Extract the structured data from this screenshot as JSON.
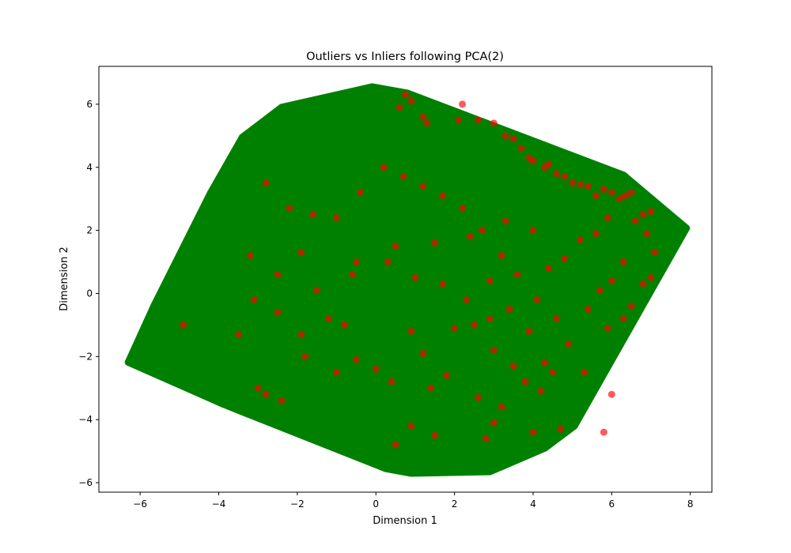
{
  "chart_data": {
    "type": "scatter",
    "title": "Outliers vs Inliers following PCA(2)",
    "xlabel": "Dimension 1",
    "ylabel": "Dimension 2",
    "xlim": [
      -7.05,
      8.55
    ],
    "ylim": [
      -6.3,
      7.2
    ],
    "xticks": [
      -6,
      -4,
      -2,
      0,
      2,
      4,
      6,
      8
    ],
    "yticks": [
      -6,
      -4,
      -2,
      0,
      2,
      4,
      6
    ],
    "grid": false,
    "legend": "none",
    "colors": {
      "inlier": "#008000",
      "outlier": "#ff0000"
    },
    "series": [
      {
        "role": "inlier",
        "color": "#008000",
        "points": [
          [
            -6.3,
            -2.18
          ],
          [
            -6.18,
            -2.2
          ],
          [
            -5.95,
            -1.82
          ],
          [
            -5.8,
            -1.8
          ],
          [
            -5.65,
            -0.4
          ],
          [
            -5.6,
            -1.1
          ],
          [
            -5.45,
            -0.8
          ],
          [
            -5.3,
            -0.2
          ],
          [
            -5.15,
            0.55
          ],
          [
            -5.0,
            0.85
          ],
          [
            -4.9,
            1.35
          ],
          [
            -4.7,
            1.45
          ],
          [
            -4.55,
            1.6
          ],
          [
            -4.4,
            2.1
          ],
          [
            -4.3,
            2.6
          ],
          [
            -4.2,
            3.2
          ],
          [
            -4.0,
            2.55
          ],
          [
            -3.9,
            2.9
          ],
          [
            -3.7,
            4.0
          ],
          [
            -3.6,
            3.5
          ],
          [
            -3.4,
            4.95
          ],
          [
            -3.2,
            5.05
          ],
          [
            -3.0,
            4.9
          ],
          [
            -2.8,
            5.3
          ],
          [
            -2.6,
            5.0
          ],
          [
            -2.4,
            5.9
          ],
          [
            -2.2,
            5.65
          ],
          [
            -2.0,
            5.4
          ],
          [
            -1.8,
            5.85
          ],
          [
            -1.5,
            5.9
          ],
          [
            -1.2,
            5.7
          ],
          [
            -0.9,
            5.5
          ],
          [
            -0.6,
            5.9
          ],
          [
            -0.3,
            6.3
          ],
          [
            -0.1,
            6.55
          ],
          [
            0.2,
            5.9
          ],
          [
            0.35,
            6.45
          ],
          [
            0.55,
            6.0
          ],
          [
            0.8,
            6.35
          ],
          [
            1.0,
            5.5
          ],
          [
            1.3,
            5.2
          ],
          [
            1.55,
            5.75
          ],
          [
            1.8,
            5.1
          ],
          [
            2.1,
            5.3
          ],
          [
            2.4,
            5.0
          ],
          [
            2.6,
            4.8
          ],
          [
            2.9,
            4.6
          ],
          [
            3.2,
            4.7
          ],
          [
            3.5,
            4.4
          ],
          [
            3.8,
            4.5
          ],
          [
            4.1,
            4.1
          ],
          [
            4.4,
            4.2
          ],
          [
            4.7,
            3.5
          ],
          [
            5.0,
            3.6
          ],
          [
            5.3,
            3.2
          ],
          [
            5.55,
            3.3
          ],
          [
            5.85,
            2.9
          ],
          [
            6.1,
            3.4
          ],
          [
            6.3,
            3.75
          ],
          [
            6.5,
            2.5
          ],
          [
            6.7,
            1.8
          ],
          [
            6.95,
            1.65
          ],
          [
            7.15,
            1.5
          ],
          [
            7.3,
            1.3
          ],
          [
            7.45,
            1.15
          ],
          [
            7.9,
            2.07
          ],
          [
            7.2,
            0.85
          ],
          [
            7.05,
            0.55
          ],
          [
            6.8,
            0.1
          ],
          [
            6.6,
            -0.3
          ],
          [
            6.5,
            -0.8
          ],
          [
            6.2,
            -1.4
          ],
          [
            6.0,
            -1.9
          ],
          [
            5.8,
            -2.3
          ],
          [
            5.5,
            -3.1
          ],
          [
            5.3,
            -3.6
          ],
          [
            5.05,
            -4.2
          ],
          [
            4.9,
            -4.3
          ],
          [
            4.6,
            -4.4
          ],
          [
            4.3,
            -4.9
          ],
          [
            4.0,
            -5.0
          ],
          [
            3.6,
            -4.8
          ],
          [
            3.3,
            -5.2
          ],
          [
            3.0,
            -5.4
          ],
          [
            2.9,
            -5.65
          ],
          [
            2.6,
            -5.2
          ],
          [
            2.3,
            -4.95
          ],
          [
            1.9,
            -5.2
          ],
          [
            1.6,
            -5.3
          ],
          [
            1.3,
            -5.5
          ],
          [
            1.15,
            -5.05
          ],
          [
            0.9,
            -5.7
          ],
          [
            0.75,
            -5.65
          ],
          [
            0.5,
            -5.3
          ],
          [
            0.25,
            -5.55
          ],
          [
            -0.1,
            -5.2
          ],
          [
            -0.4,
            -4.9
          ],
          [
            -0.7,
            -4.9
          ],
          [
            -1.0,
            -4.7
          ],
          [
            -1.3,
            -4.5
          ],
          [
            -1.6,
            -4.3
          ],
          [
            -2.0,
            -4.4
          ],
          [
            -2.3,
            -4.2
          ],
          [
            -2.6,
            -4.0
          ],
          [
            -3.0,
            -3.9
          ],
          [
            -3.3,
            -3.8
          ],
          [
            -3.6,
            -3.6
          ],
          [
            -3.9,
            -3.5
          ],
          [
            -4.2,
            -3.3
          ],
          [
            -4.5,
            -3.1
          ],
          [
            -4.8,
            -2.95
          ],
          [
            -5.1,
            -2.8
          ],
          [
            -5.4,
            -2.6
          ],
          [
            -5.7,
            -2.4
          ],
          [
            -6.0,
            -2.3
          ],
          [
            -3.0,
            -1.0
          ],
          [
            -2.0,
            -0.5
          ],
          [
            -1.0,
            0.0
          ],
          [
            0.0,
            0.5
          ],
          [
            1.0,
            1.0
          ],
          [
            2.0,
            1.5
          ],
          [
            3.0,
            2.0
          ],
          [
            4.0,
            1.0
          ],
          [
            5.0,
            0.5
          ],
          [
            -2.5,
            1.5
          ],
          [
            -1.5,
            2.5
          ],
          [
            -0.5,
            3.5
          ],
          [
            0.5,
            4.0
          ],
          [
            1.5,
            3.0
          ],
          [
            2.5,
            2.5
          ],
          [
            3.5,
            0.0
          ],
          [
            4.5,
            -1.0
          ],
          [
            3.0,
            -2.5
          ],
          [
            2.0,
            -3.5
          ],
          [
            1.0,
            -4.0
          ],
          [
            0.0,
            -3.5
          ],
          [
            -1.0,
            -3.0
          ],
          [
            -2.0,
            -2.5
          ],
          [
            -3.0,
            -2.0
          ],
          [
            -4.0,
            -1.0
          ],
          [
            -4.5,
            0.5
          ],
          [
            -3.5,
            1.0
          ],
          [
            -2.5,
            3.0
          ],
          [
            -1.5,
            4.5
          ],
          [
            0.5,
            2.0
          ],
          [
            1.5,
            -1.0
          ],
          [
            2.5,
            -1.5
          ],
          [
            4.2,
            2.8
          ],
          [
            5.2,
            2.1
          ],
          [
            5.9,
            0.9
          ],
          [
            3.8,
            -3.0
          ],
          [
            5.6,
            -1.2
          ],
          [
            6.6,
            0.7
          ],
          [
            -0.8,
            -4.5
          ],
          [
            -2.2,
            -3.8
          ],
          [
            -4.8,
            -0.5
          ],
          [
            -5.2,
            0.2
          ],
          [
            -3.8,
            2.4
          ],
          [
            -1.0,
            5.0
          ],
          [
            0.8,
            5.2
          ],
          [
            2.8,
            4.2
          ],
          [
            4.6,
            3.0
          ],
          [
            6.2,
            1.4
          ]
        ]
      },
      {
        "role": "outlier",
        "color": "#ff0000",
        "points": [
          [
            0.6,
            5.9
          ],
          [
            0.75,
            6.3
          ],
          [
            0.9,
            6.1
          ],
          [
            1.2,
            5.6
          ],
          [
            1.3,
            5.4
          ],
          [
            2.1,
            5.5
          ],
          [
            2.2,
            6.0
          ],
          [
            2.6,
            5.5
          ],
          [
            3.0,
            5.4
          ],
          [
            3.3,
            5.0
          ],
          [
            3.5,
            4.9
          ],
          [
            3.7,
            4.6
          ],
          [
            3.9,
            4.3
          ],
          [
            4.0,
            4.2
          ],
          [
            4.3,
            4.0
          ],
          [
            4.4,
            4.1
          ],
          [
            4.6,
            3.8
          ],
          [
            4.8,
            3.7
          ],
          [
            5.0,
            3.5
          ],
          [
            5.2,
            3.45
          ],
          [
            5.4,
            3.4
          ],
          [
            5.6,
            3.1
          ],
          [
            5.8,
            3.3
          ],
          [
            6.0,
            3.2
          ],
          [
            6.2,
            3.0
          ],
          [
            6.35,
            3.1
          ],
          [
            6.5,
            3.2
          ],
          [
            6.6,
            2.3
          ],
          [
            6.8,
            2.5
          ],
          [
            7.0,
            2.6
          ],
          [
            6.9,
            1.9
          ],
          [
            7.1,
            1.3
          ],
          [
            6.3,
            1.0
          ],
          [
            6.0,
            0.4
          ],
          [
            5.7,
            0.1
          ],
          [
            5.4,
            -0.5
          ],
          [
            5.9,
            -1.1
          ],
          [
            6.3,
            -0.8
          ],
          [
            6.5,
            -0.4
          ],
          [
            6.8,
            0.3
          ],
          [
            7.0,
            0.5
          ],
          [
            5.3,
            -2.5
          ],
          [
            6.0,
            -3.2
          ],
          [
            5.8,
            -4.4
          ],
          [
            4.7,
            -4.3
          ],
          [
            4.0,
            -4.4
          ],
          [
            3.0,
            -4.1
          ],
          [
            2.8,
            -4.6
          ],
          [
            1.5,
            -4.5
          ],
          [
            0.9,
            -4.2
          ],
          [
            0.5,
            -4.8
          ],
          [
            -3.0,
            -3.0
          ],
          [
            -2.8,
            -3.2
          ],
          [
            -2.4,
            -3.4
          ],
          [
            -1.8,
            -2.0
          ],
          [
            -1.0,
            -2.5
          ],
          [
            -0.5,
            -2.1
          ],
          [
            0.0,
            -2.4
          ],
          [
            0.4,
            -2.8
          ],
          [
            1.2,
            -1.9
          ],
          [
            2.0,
            -1.1
          ],
          [
            2.5,
            -1.0
          ],
          [
            3.0,
            -1.8
          ],
          [
            3.5,
            -2.3
          ],
          [
            3.8,
            -2.8
          ],
          [
            4.2,
            -3.1
          ],
          [
            4.5,
            -2.5
          ],
          [
            4.9,
            -1.6
          ],
          [
            4.6,
            -0.8
          ],
          [
            4.1,
            -0.2
          ],
          [
            3.6,
            0.6
          ],
          [
            3.2,
            1.2
          ],
          [
            2.7,
            2.0
          ],
          [
            2.2,
            2.7
          ],
          [
            1.7,
            3.1
          ],
          [
            1.2,
            3.4
          ],
          [
            0.7,
            3.7
          ],
          [
            0.2,
            4.0
          ],
          [
            -0.4,
            3.2
          ],
          [
            -1.0,
            2.4
          ],
          [
            -1.6,
            2.5
          ],
          [
            -2.2,
            2.7
          ],
          [
            -2.8,
            3.5
          ],
          [
            -3.2,
            1.2
          ],
          [
            -2.5,
            0.6
          ],
          [
            -1.9,
            1.3
          ],
          [
            -1.2,
            -0.8
          ],
          [
            -0.6,
            0.6
          ],
          [
            0.3,
            1.0
          ],
          [
            1.0,
            0.5
          ],
          [
            1.7,
            0.3
          ],
          [
            2.3,
            -0.2
          ],
          [
            2.9,
            0.4
          ],
          [
            3.4,
            -0.5
          ],
          [
            4.4,
            0.8
          ],
          [
            4.8,
            1.1
          ],
          [
            5.2,
            1.7
          ],
          [
            5.6,
            1.9
          ],
          [
            5.9,
            2.4
          ],
          [
            4.0,
            2.0
          ],
          [
            3.3,
            2.3
          ],
          [
            2.4,
            1.8
          ],
          [
            1.5,
            1.6
          ],
          [
            0.5,
            1.5
          ],
          [
            -0.5,
            1.0
          ],
          [
            -1.5,
            0.1
          ],
          [
            -2.5,
            -0.6
          ],
          [
            -3.5,
            -1.3
          ],
          [
            -4.9,
            -1.0
          ],
          [
            -3.1,
            -0.2
          ],
          [
            -1.9,
            -1.3
          ],
          [
            -0.8,
            -1.0
          ],
          [
            0.9,
            -1.2
          ],
          [
            1.8,
            -2.6
          ],
          [
            2.6,
            -3.3
          ],
          [
            3.2,
            -3.6
          ],
          [
            4.3,
            -2.2
          ],
          [
            3.9,
            -1.2
          ],
          [
            2.9,
            -0.8
          ],
          [
            1.4,
            -3.0
          ]
        ]
      }
    ]
  }
}
